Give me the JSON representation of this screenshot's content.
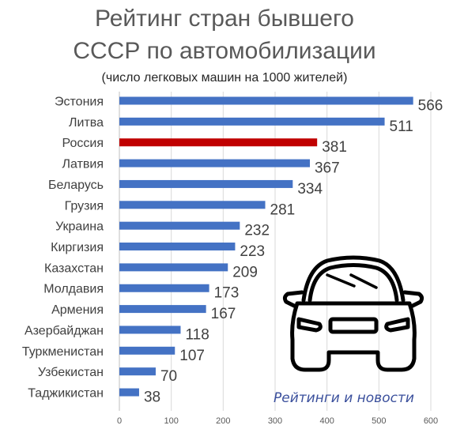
{
  "chart_data": {
    "type": "bar",
    "orientation": "horizontal",
    "title_line1": "Рейтинг стран бывшего",
    "title_line2": "СССР по автомобилизации",
    "subtitle": "(число легковых машин на 1000 жителей)",
    "categories": [
      "Эстония",
      "Литва",
      "Россия",
      "Латвия",
      "Беларусь",
      "Грузия",
      "Украина",
      "Киргизия",
      "Казахстан",
      "Молдавия",
      "Армения",
      "Азербайджан",
      "Туркменистан",
      "Узбекистан",
      "Таджикистан"
    ],
    "values": [
      566,
      511,
      381,
      367,
      334,
      281,
      232,
      223,
      209,
      173,
      167,
      118,
      107,
      70,
      38
    ],
    "highlight_category": "Россия",
    "xlim": [
      0,
      600
    ],
    "xticks": [
      0,
      100,
      200,
      300,
      400,
      500,
      600
    ],
    "grid": true,
    "colors": {
      "bar": "#4472c4",
      "highlight": "#c00000",
      "grid": "#d9d9d9"
    }
  },
  "watermark": "Рейтинги и новости",
  "illustration_icon": "car-front-icon"
}
